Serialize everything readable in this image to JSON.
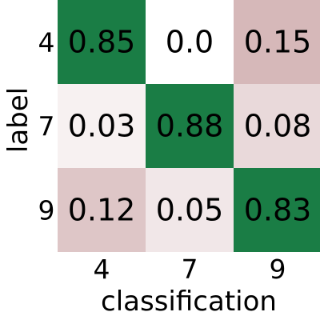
{
  "chart_data": {
    "type": "heatmap",
    "xlabel": "classification",
    "ylabel": "label",
    "x_categories": [
      "4",
      "7",
      "9"
    ],
    "y_categories": [
      "4",
      "7",
      "9"
    ],
    "values": [
      [
        0.85,
        0.0,
        0.15
      ],
      [
        0.03,
        0.88,
        0.08
      ],
      [
        0.12,
        0.05,
        0.83
      ]
    ],
    "cell_labels": [
      [
        "0.85",
        "0.0",
        "0.15"
      ],
      [
        "0.03",
        "0.88",
        "0.08"
      ],
      [
        "0.12",
        "0.05",
        "0.83"
      ]
    ],
    "colors": {
      "diagonal": "#1a7d45",
      "off_diagonal_low": "#ffffff",
      "off_diagonal_high": "#d6b8b9"
    },
    "off_diagonal_max": 0.15,
    "grid": false,
    "colorbar": false
  }
}
